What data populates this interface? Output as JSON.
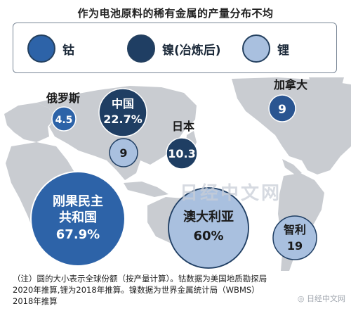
{
  "title": "作为电池原料的稀有金属的产量分布不均",
  "legend": [
    {
      "label": "钴",
      "color": "#2d63a8"
    },
    {
      "label": "镍(冶炼后)",
      "color": "#1f3e63"
    },
    {
      "label": "锂",
      "color": "#a9c0df"
    }
  ],
  "markers": [
    {
      "metal": "钴",
      "country": "俄罗斯",
      "value": "4.5"
    },
    {
      "metal": "镍(冶炼后)",
      "country": "中国",
      "value": "22.7%"
    },
    {
      "metal": "锂",
      "country": "中国",
      "value": "9"
    },
    {
      "metal": "镍(冶炼后)",
      "country": "日本",
      "value": "10.3"
    },
    {
      "metal": "镍(冶炼后)",
      "country": "加拿大",
      "value": "9"
    },
    {
      "metal": "钴",
      "country_line1": "刚果民主",
      "country_line2": "共和国",
      "value": "67.9%"
    },
    {
      "metal": "锂",
      "country": "澳大利亚",
      "value": "60%"
    },
    {
      "metal": "锂",
      "country": "智利",
      "value": "19"
    }
  ],
  "note_lines": [
    "（注）圆的大小表示全球份额（按产量计算）。钴数据为美国地质勘探局",
    "2020年推算,锂为2018年推算。镍数据为世界金属统计局（WBMS）",
    "2018年推算"
  ],
  "watermark": "日经中文网",
  "source_mark": "日经中文网"
}
